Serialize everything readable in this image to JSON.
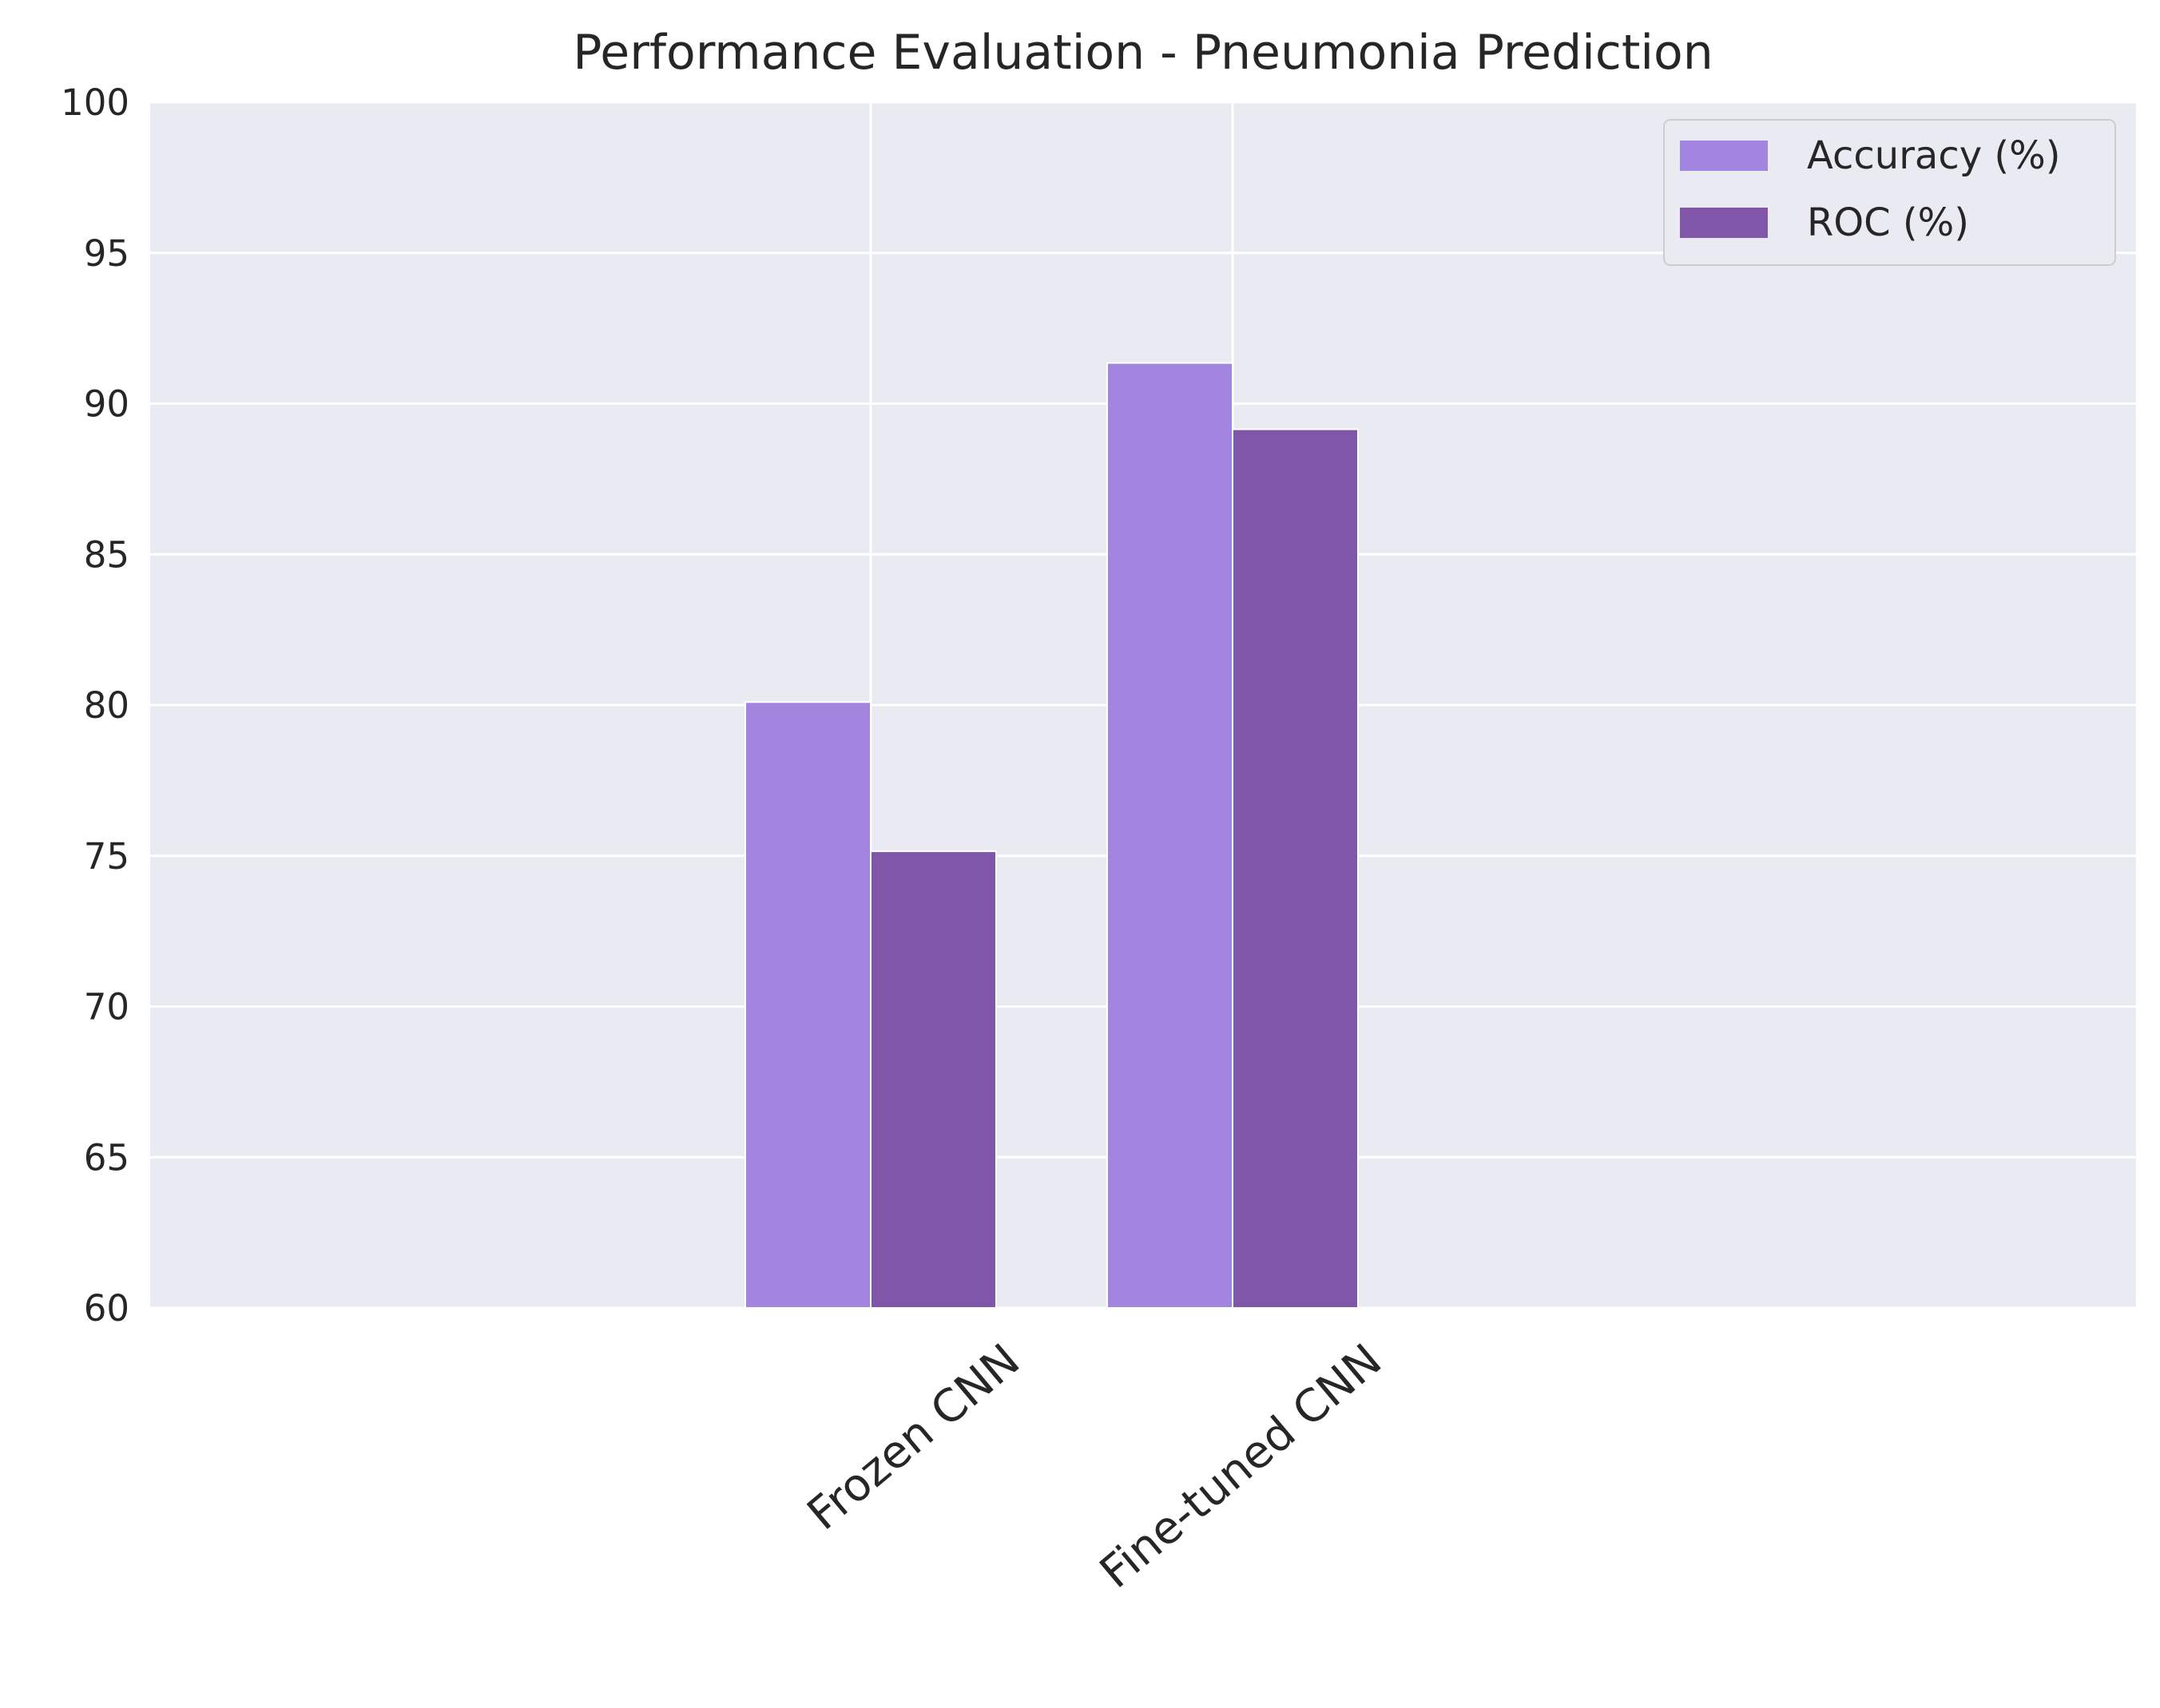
{
  "chart_data": {
    "type": "bar",
    "title": "Performance Evaluation - Pneumonia Prediction",
    "xlabel": "",
    "ylabel": "",
    "categories": [
      "Frozen CNN",
      "Fine-tuned CNN"
    ],
    "series": [
      {
        "name": "Accuracy (%)",
        "values": [
          80.1,
          91.35
        ],
        "color": "#a185de"
      },
      {
        "name": "ROC (%)",
        "values": [
          75.15,
          89.15
        ],
        "color": "#7f56a8"
      }
    ],
    "ylim": [
      60,
      100
    ],
    "yticks": [
      60,
      65,
      70,
      75,
      80,
      85,
      90,
      95,
      100
    ],
    "grid": true,
    "legend_position": "top-right",
    "colors": {
      "axes_background": "#eaeaf2",
      "grid": "#ffffff"
    }
  }
}
